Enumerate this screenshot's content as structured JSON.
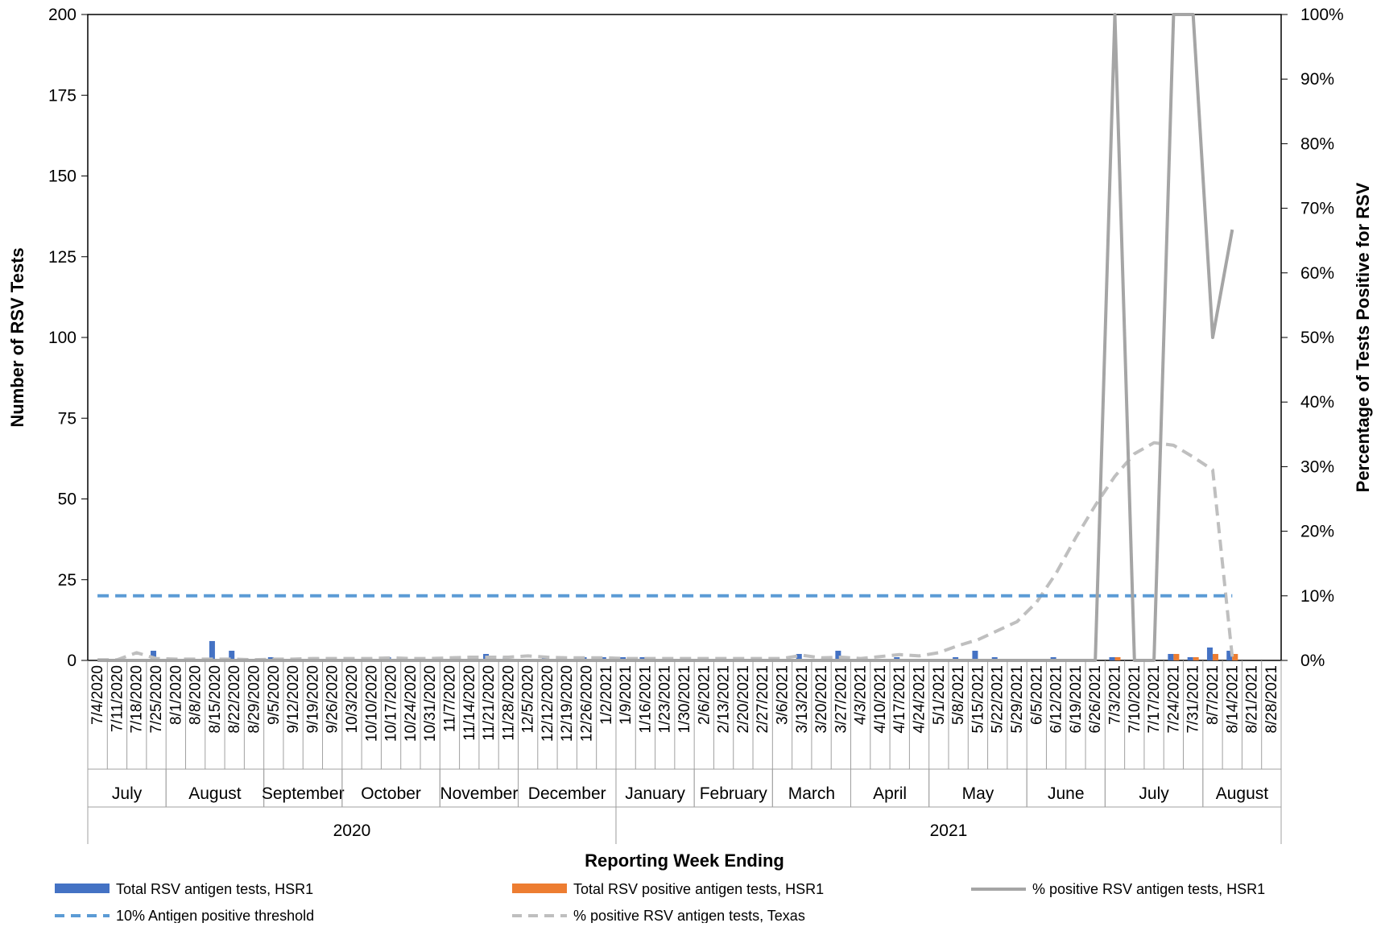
{
  "chart_data": {
    "type": "bar",
    "xlabel": "Reporting Week Ending",
    "ylabel": "Number of RSV Tests",
    "y2label": "Percentage of Tests Positive for RSV",
    "ylim": [
      0,
      200
    ],
    "y2lim": [
      0,
      100
    ],
    "y_ticks": [
      "0",
      "25",
      "50",
      "75",
      "100",
      "125",
      "150",
      "175",
      "200"
    ],
    "y2_ticks": [
      "0%",
      "10%",
      "20%",
      "30%",
      "40%",
      "50%",
      "60%",
      "70%",
      "80%",
      "90%",
      "100%"
    ],
    "grid": false,
    "legend_position": "bottom",
    "categories": [
      "7/4/2020",
      "7/11/2020",
      "7/18/2020",
      "7/25/2020",
      "8/1/2020",
      "8/8/2020",
      "8/15/2020",
      "8/22/2020",
      "8/29/2020",
      "9/5/2020",
      "9/12/2020",
      "9/19/2020",
      "9/26/2020",
      "10/3/2020",
      "10/10/2020",
      "10/17/2020",
      "10/24/2020",
      "10/31/2020",
      "11/7/2020",
      "11/14/2020",
      "11/21/2020",
      "11/28/2020",
      "12/5/2020",
      "12/12/2020",
      "12/19/2020",
      "12/26/2020",
      "1/2/2021",
      "1/9/2021",
      "1/16/2021",
      "1/23/2021",
      "1/30/2021",
      "2/6/2021",
      "2/13/2021",
      "2/20/2021",
      "2/27/2021",
      "3/6/2021",
      "3/13/2021",
      "3/20/2021",
      "3/27/2021",
      "4/3/2021",
      "4/10/2021",
      "4/17/2021",
      "4/24/2021",
      "5/1/2021",
      "5/8/2021",
      "5/15/2021",
      "5/22/2021",
      "5/29/2021",
      "6/5/2021",
      "6/12/2021",
      "6/19/2021",
      "6/26/2021",
      "7/3/2021",
      "7/10/2021",
      "7/17/2021",
      "7/24/2021",
      "7/31/2021",
      "8/7/2021",
      "8/14/2021",
      "8/21/2021",
      "8/28/2021"
    ],
    "month_groups": [
      {
        "label": "July",
        "start": 0,
        "end": 3
      },
      {
        "label": "August",
        "start": 4,
        "end": 8
      },
      {
        "label": "September",
        "start": 9,
        "end": 12
      },
      {
        "label": "October",
        "start": 13,
        "end": 17
      },
      {
        "label": "November",
        "start": 18,
        "end": 21
      },
      {
        "label": "December",
        "start": 22,
        "end": 26
      },
      {
        "label": "January",
        "start": 27,
        "end": 30
      },
      {
        "label": "February",
        "start": 31,
        "end": 34
      },
      {
        "label": "March",
        "start": 35,
        "end": 38
      },
      {
        "label": "April",
        "start": 39,
        "end": 42
      },
      {
        "label": "May",
        "start": 43,
        "end": 47
      },
      {
        "label": "June",
        "start": 48,
        "end": 51
      },
      {
        "label": "July",
        "start": 52,
        "end": 56
      },
      {
        "label": "August",
        "start": 57,
        "end": 60
      }
    ],
    "year_groups": [
      {
        "label": "2020",
        "start": 0,
        "end": 26
      },
      {
        "label": "2021",
        "start": 27,
        "end": 60
      }
    ],
    "series": [
      {
        "name": "Total RSV antigen tests, HSR1",
        "type": "bar",
        "axis": "left",
        "color": "#4472c4",
        "values": [
          0,
          0,
          0,
          3,
          0,
          0,
          6,
          3,
          0,
          1,
          0,
          0,
          1,
          1,
          0,
          1,
          0,
          0,
          0,
          0,
          2,
          1,
          0,
          1,
          0,
          1,
          1,
          1,
          1,
          0,
          0,
          0,
          0,
          1,
          0,
          0,
          2,
          0,
          3,
          0,
          0,
          1,
          0,
          0,
          1,
          3,
          1,
          0,
          0,
          1,
          0,
          0,
          1,
          0,
          0,
          2,
          1,
          4,
          3,
          0,
          0
        ]
      },
      {
        "name": "Total RSV positive antigen tests, HSR1",
        "type": "bar",
        "axis": "left",
        "color": "#ed7d31",
        "values": [
          0,
          0,
          0,
          0,
          0,
          0,
          0,
          0,
          0,
          0,
          0,
          0,
          0,
          0,
          0,
          0,
          0,
          0,
          0,
          0,
          0,
          0,
          0,
          0,
          0,
          0,
          0,
          0,
          0,
          0,
          0,
          0,
          0,
          0,
          0,
          0,
          0,
          0,
          0,
          0,
          0,
          0,
          0,
          0,
          0,
          0,
          0,
          0,
          0,
          0,
          0,
          0,
          1,
          0,
          0,
          2,
          1,
          2,
          2,
          0,
          0
        ]
      },
      {
        "name": "% positive RSV antigen tests, HSR1",
        "type": "line",
        "axis": "right",
        "color": "#a5a5a5",
        "dash": "solid",
        "values": [
          0,
          0,
          0,
          0,
          0,
          0,
          0,
          0,
          0,
          0,
          0,
          0,
          0,
          0,
          0,
          0,
          0,
          0,
          0,
          0,
          0,
          0,
          0,
          0,
          0,
          0,
          0,
          0,
          0,
          0,
          0,
          0,
          0,
          0,
          0,
          0,
          0,
          0,
          0,
          0,
          0,
          0,
          0,
          0,
          0,
          0,
          0,
          0,
          0,
          0,
          0,
          0,
          100,
          0,
          0,
          100,
          100,
          50,
          66.7,
          null,
          null
        ]
      },
      {
        "name": "10% Antigen positive threshold",
        "type": "line",
        "axis": "right",
        "color": "#5b9bd5",
        "dash": "dashed",
        "values": [
          10,
          10,
          10,
          10,
          10,
          10,
          10,
          10,
          10,
          10,
          10,
          10,
          10,
          10,
          10,
          10,
          10,
          10,
          10,
          10,
          10,
          10,
          10,
          10,
          10,
          10,
          10,
          10,
          10,
          10,
          10,
          10,
          10,
          10,
          10,
          10,
          10,
          10,
          10,
          10,
          10,
          10,
          10,
          10,
          10,
          10,
          10,
          10,
          10,
          10,
          10,
          10,
          10,
          10,
          10,
          10,
          10,
          10,
          10,
          null,
          null
        ]
      },
      {
        "name": "% positive RSV antigen tests, Texas",
        "type": "line",
        "axis": "right",
        "color": "#bfbfbf",
        "dash": "dashed",
        "values": [
          0.1,
          0.1,
          1.2,
          0.3,
          0.2,
          0.2,
          0.2,
          0.2,
          0.1,
          0.2,
          0.2,
          0.3,
          0.3,
          0.3,
          0.3,
          0.4,
          0.3,
          0.3,
          0.4,
          0.5,
          0.5,
          0.5,
          0.7,
          0.5,
          0.4,
          0.4,
          0.4,
          0.3,
          0.3,
          0.3,
          0.3,
          0.3,
          0.3,
          0.3,
          0.3,
          0.3,
          0.8,
          0.4,
          0.5,
          0.3,
          0.6,
          0.9,
          0.7,
          1.2,
          2.3,
          3.2,
          4.6,
          6.0,
          9.0,
          13.5,
          19.0,
          24.0,
          28.5,
          32.0,
          33.7,
          33.3,
          31.5,
          29.5,
          0.5,
          null,
          null
        ]
      }
    ]
  }
}
